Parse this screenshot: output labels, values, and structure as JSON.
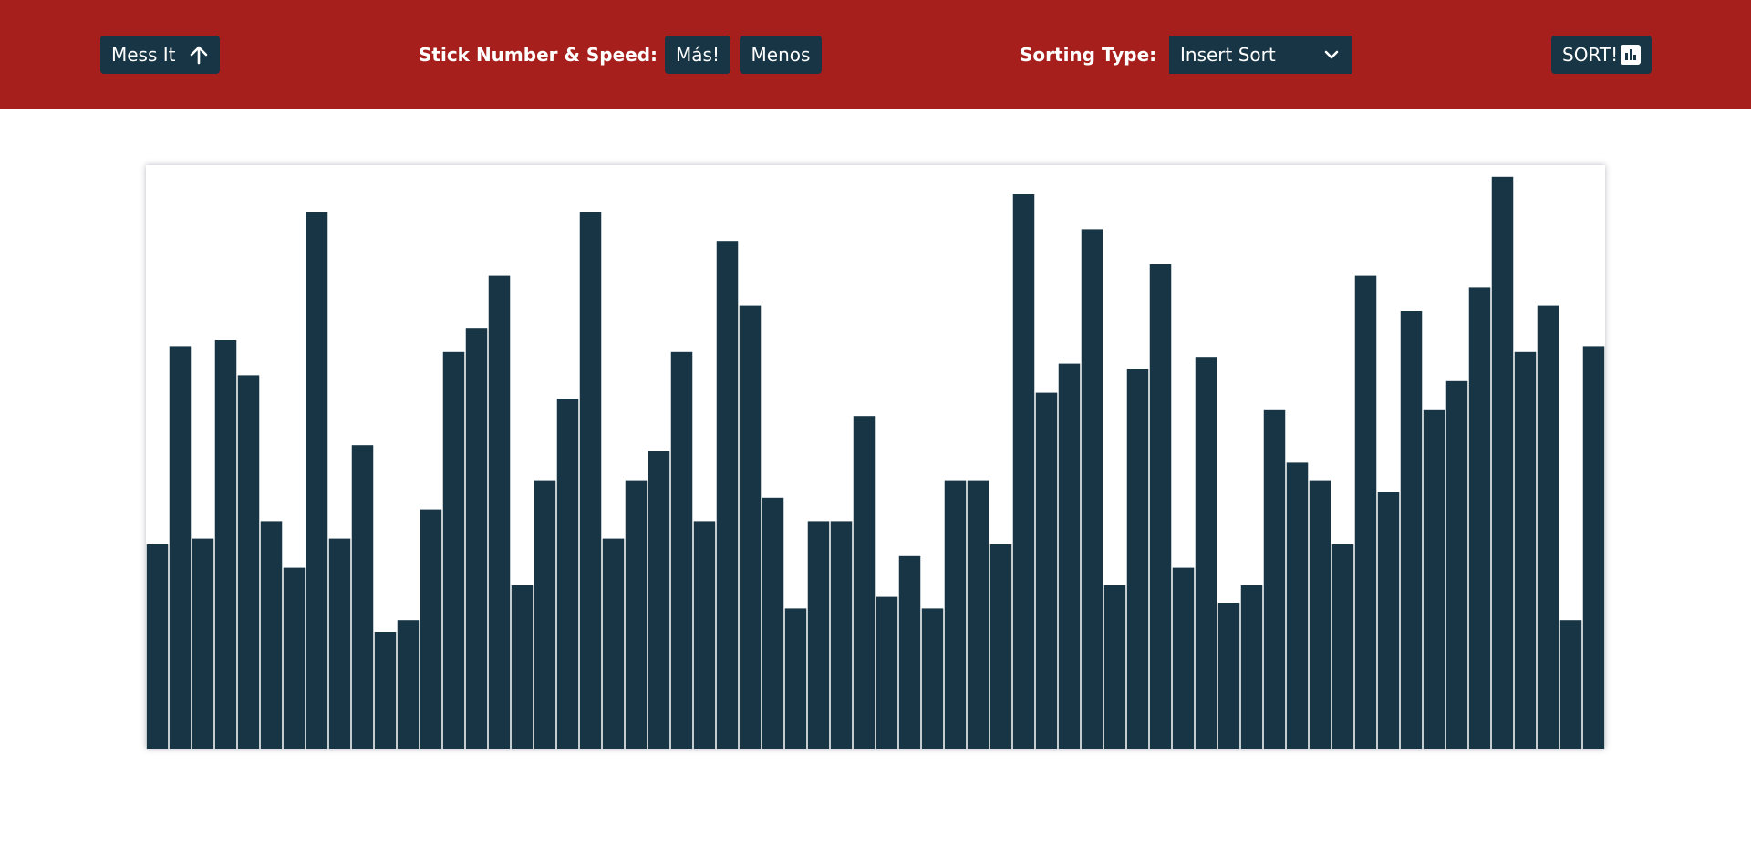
{
  "toolbar": {
    "mess_label": "Mess It",
    "speed_label": "Stick Number & Speed:",
    "more_label": "Más!",
    "less_label": "Menos",
    "sort_type_label": "Sorting Type:",
    "sort_type_value": "Insert Sort",
    "sort_label": "SORT!"
  },
  "icons": {
    "mess": "arrow-up-icon",
    "dropdown": "chevron-down-icon",
    "sort": "bar-chart-icon"
  },
  "colors": {
    "header_bg": "#a61f1c",
    "button_bg": "#173544",
    "bar": "#173544"
  },
  "chart_data": {
    "type": "bar",
    "ylim": [
      0,
      100
    ],
    "values": [
      35,
      69,
      36,
      70,
      64,
      39,
      31,
      92,
      36,
      52,
      20,
      22,
      41,
      68,
      72,
      81,
      28,
      46,
      60,
      92,
      36,
      46,
      51,
      68,
      39,
      87,
      76,
      43,
      24,
      39,
      39,
      57,
      26,
      33,
      24,
      46,
      46,
      35,
      95,
      61,
      66,
      89,
      28,
      65,
      83,
      31,
      67,
      25,
      28,
      58,
      49,
      46,
      35,
      81,
      44,
      75,
      58,
      63,
      79,
      98,
      68,
      76,
      22,
      69
    ]
  }
}
